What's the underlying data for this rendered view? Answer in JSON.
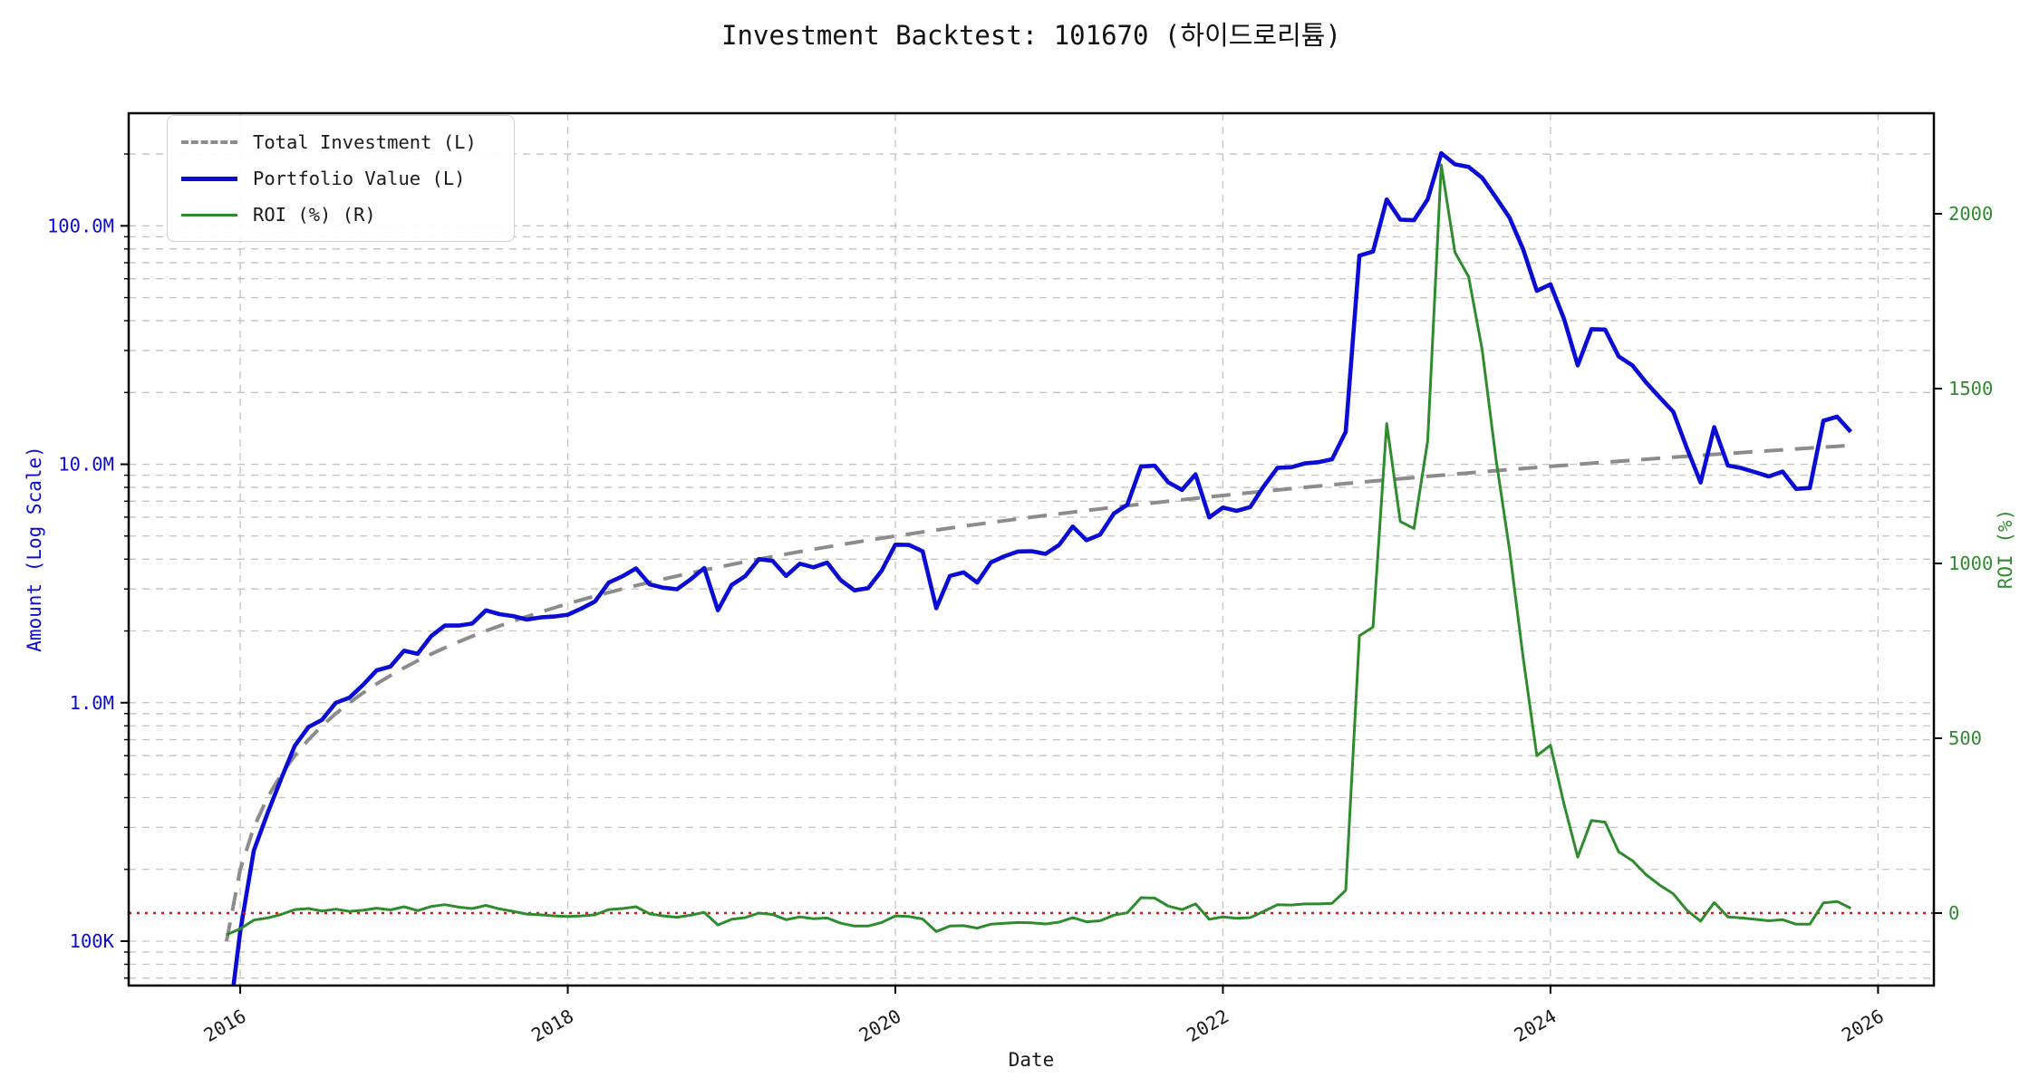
{
  "header": {
    "title": "Investment Backtest: 101670 (하이드로리튬)"
  },
  "legend": {
    "items": [
      {
        "label": "Total Investment (L)"
      },
      {
        "label": "Portfolio Value (L)"
      },
      {
        "label": "ROI (%) (R)"
      }
    ]
  },
  "colors": {
    "background": "#ffffff",
    "grid": "#c3c3c3",
    "spine": "#000000",
    "title_text": "#111111",
    "x_tick_text": "#1a1a1a",
    "left_axis_text": "#0b0bd6",
    "right_axis_text": "#2e8b2e",
    "zero_line": "#dd1111"
  },
  "chart_data": {
    "type": "line",
    "title": "Investment Backtest: 101670 (하이드로리튬)",
    "xlabel": "Date",
    "ylabel_left": "Amount (Log Scale)",
    "ylabel_right": "ROI (%)",
    "x_start": "2015-11",
    "x_frequency": "monthly",
    "x_frac_start": 2015.9167,
    "xlim": [
      2015.319,
      2026.341
    ],
    "ylim_left_log10": [
      4.8139,
      8.4722
    ],
    "ylim_right": [
      -207.3,
      2287.6
    ],
    "grid": true,
    "legend_position": "upper-left",
    "xticks": [
      2016,
      2018,
      2020,
      2022,
      2024,
      2026
    ],
    "yticks_left": [
      {
        "value": 100000,
        "label": "100K"
      },
      {
        "value": 1000000,
        "label": "1.0M"
      },
      {
        "value": 10000000,
        "label": "10.0M"
      },
      {
        "value": 100000000,
        "label": "100.0M"
      }
    ],
    "yticks_right": [
      {
        "value": 0,
        "label": "0"
      },
      {
        "value": 500,
        "label": "500"
      },
      {
        "value": 1000,
        "label": "1000"
      },
      {
        "value": 1500,
        "label": "1500"
      },
      {
        "value": 2000,
        "label": "2000"
      }
    ],
    "zero_roi_line": {
      "value": 0,
      "color": "#dd1111",
      "style": "dotted"
    },
    "series": [
      {
        "name": "Total Investment (L)",
        "axis": "left",
        "unit": "millions",
        "style": "dashed",
        "color": "#8c8c8c",
        "width": 4,
        "values": [
          0.1,
          0.2,
          0.3,
          0.4,
          0.5,
          0.6,
          0.7,
          0.8,
          0.9,
          1.0,
          1.1,
          1.2,
          1.3,
          1.4,
          1.5,
          1.6,
          1.7,
          1.8,
          1.9,
          2.0,
          2.1,
          2.2,
          2.3,
          2.4,
          2.5,
          2.6,
          2.7,
          2.8,
          2.9,
          3.0,
          3.1,
          3.2,
          3.3,
          3.4,
          3.5,
          3.6,
          3.7,
          3.8,
          3.9,
          4.0,
          4.1,
          4.2,
          4.3,
          4.4,
          4.5,
          4.6,
          4.7,
          4.8,
          4.9,
          5.0,
          5.1,
          5.2,
          5.3,
          5.4,
          5.5,
          5.6,
          5.7,
          5.8,
          5.9,
          6.0,
          6.1,
          6.2,
          6.3,
          6.4,
          6.5,
          6.6,
          6.7,
          6.8,
          6.9,
          7.0,
          7.1,
          7.2,
          7.3,
          7.4,
          7.5,
          7.6,
          7.7,
          7.8,
          7.9,
          8.0,
          8.1,
          8.2,
          8.3,
          8.4,
          8.5,
          8.6,
          8.7,
          8.8,
          8.9,
          9.0,
          9.1,
          9.2,
          9.3,
          9.4,
          9.5,
          9.6,
          9.7,
          9.8,
          9.9,
          10.0,
          10.1,
          10.2,
          10.3,
          10.4,
          10.5,
          10.6,
          10.7,
          10.8,
          10.9,
          11.0,
          11.1,
          11.2,
          11.3,
          11.4,
          11.5,
          11.6,
          11.7,
          11.8,
          11.9,
          12.0
        ]
      },
      {
        "name": "Portfolio Value (L)",
        "axis": "left",
        "unit": "millions",
        "style": "solid",
        "color": "#0b0bd6",
        "width": 4.6,
        "values": [
          0.038,
          0.11,
          0.24,
          0.344,
          0.48,
          0.66,
          0.791,
          0.848,
          0.999,
          1.05,
          1.188,
          1.368,
          1.417,
          1.652,
          1.605,
          1.904,
          2.108,
          2.106,
          2.147,
          2.44,
          2.352,
          2.31,
          2.231,
          2.28,
          2.3,
          2.34,
          2.484,
          2.66,
          3.19,
          3.39,
          3.658,
          3.136,
          3.036,
          2.992,
          3.29,
          3.672,
          2.442,
          3.116,
          3.393,
          4.0,
          3.936,
          3.402,
          3.827,
          3.696,
          3.87,
          3.266,
          2.961,
          3.024,
          3.577,
          4.6,
          4.59,
          4.316,
          2.491,
          3.402,
          3.52,
          3.192,
          3.876,
          4.118,
          4.307,
          4.32,
          4.209,
          4.588,
          5.481,
          4.8,
          5.07,
          6.204,
          6.767,
          9.792,
          9.867,
          8.4,
          7.81,
          9.072,
          5.986,
          6.586,
          6.375,
          6.612,
          8.085,
          9.672,
          9.717,
          10.08,
          10.206,
          10.496,
          13.695,
          75.012,
          78.03,
          129.0,
          106.14,
          105.6,
          129.05,
          201.6,
          181.09,
          176.64,
          159.03,
          131.6,
          108.3,
          79.68,
          53.35,
          56.84,
          40.59,
          26.0,
          36.865,
          36.72,
          28.325,
          26.0,
          22.05,
          19.08,
          16.585,
          11.664,
          8.393,
          14.3,
          9.879,
          9.632,
          9.266,
          8.892,
          9.315,
          7.888,
          7.956,
          15.222,
          15.827,
          13.68
        ]
      },
      {
        "name": "ROI (%) (R)",
        "axis": "right",
        "unit": "percent",
        "style": "solid",
        "color": "#2e8b2e",
        "width": 3,
        "values": [
          -62,
          -45,
          -20,
          -14,
          -4,
          10,
          13,
          6,
          11,
          5,
          8,
          14,
          9,
          18,
          7,
          19,
          24,
          17,
          13,
          22,
          12,
          5,
          -3,
          -5,
          -8,
          -10,
          -8,
          -5,
          10,
          13,
          18,
          -2,
          -8,
          -12,
          -6,
          2,
          -34,
          -18,
          -13,
          0,
          -4,
          -19,
          -11,
          -16,
          -14,
          -29,
          -37,
          -37,
          -27,
          -8,
          -10,
          -17,
          -53,
          -37,
          -36,
          -43,
          -32,
          -29,
          -27,
          -28,
          -31,
          -26,
          -13,
          -25,
          -22,
          -6,
          1,
          44,
          43,
          20,
          10,
          26,
          -18,
          -11,
          -15,
          -13,
          5,
          24,
          23,
          26,
          26,
          28,
          65,
          793,
          818,
          1400,
          1120,
          1100,
          1350,
          2140,
          1890,
          1820,
          1610,
          1300,
          1040,
          730,
          450,
          480,
          310,
          160,
          265,
          260,
          175,
          150,
          110,
          80,
          55,
          8,
          -23,
          30,
          -11,
          -14,
          -18,
          -22,
          -19,
          -32,
          -32,
          29,
          33,
          14
        ]
      }
    ]
  }
}
